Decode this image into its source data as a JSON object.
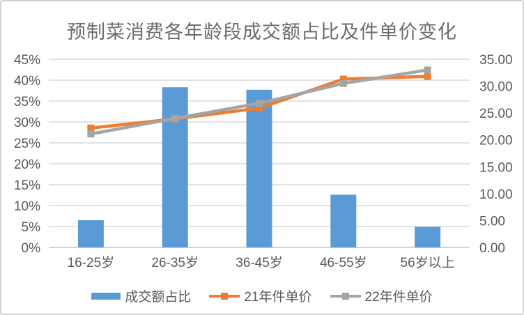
{
  "chart_data": {
    "type": "bar",
    "subtype": "combo-bar-line",
    "title": "预制菜消费各年龄段成交额占比及件单价变化",
    "categories": [
      "16-25岁",
      "26-35岁",
      "36-45岁",
      "46-55岁",
      "56岁以上"
    ],
    "series": [
      {
        "name": "成交额占比",
        "type": "bar",
        "axis": "left",
        "unit": "%",
        "values": [
          6.5,
          38.3,
          37.7,
          12.6,
          4.9
        ],
        "color": "#5B9BD5"
      },
      {
        "name": "21年件单价",
        "type": "line",
        "axis": "right",
        "values": [
          22.2,
          23.9,
          25.9,
          31.3,
          31.8
        ],
        "color": "#ED7D31"
      },
      {
        "name": "22年件单价",
        "type": "line",
        "axis": "right",
        "values": [
          21.1,
          24.0,
          26.8,
          30.5,
          33.0
        ],
        "color": "#A5A5A5"
      }
    ],
    "axes": {
      "left": {
        "min": 0,
        "max": 45,
        "ticks": [
          "45%",
          "40%",
          "35%",
          "30%",
          "25%",
          "20%",
          "15%",
          "10%",
          "5%",
          "0%"
        ]
      },
      "right": {
        "min": 0,
        "max": 35,
        "ticks": [
          "35.00",
          "30.00",
          "25.00",
          "20.00",
          "15.00",
          "10.00",
          "5.00",
          "0.00"
        ]
      }
    },
    "grid": true,
    "legend_position": "bottom"
  },
  "colors": {
    "grid": "#D9D9D9",
    "axis_line": "#C6C6C6",
    "axis_text": "#595959",
    "title_text": "#6B6B6B",
    "frame_border": "#D2D2D2",
    "background": "#FFFFFF"
  }
}
